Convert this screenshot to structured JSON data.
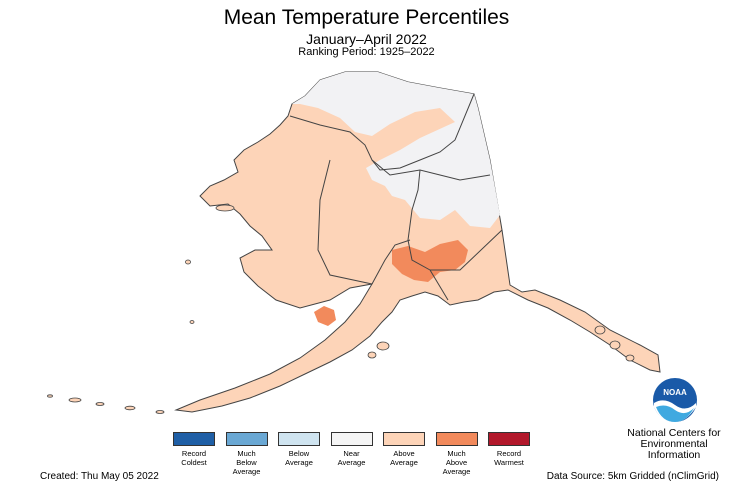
{
  "title": "Mean Temperature Percentiles",
  "subtitle": "January–April 2022",
  "period": "Ranking Period: 1925–2022",
  "legend": [
    {
      "label": "Record\nColdest",
      "color": "#1f5fa6"
    },
    {
      "label": "Much\nBelow\nAverage",
      "color": "#6aa8d4"
    },
    {
      "label": "Below\nAverage",
      "color": "#cfe4f0"
    },
    {
      "label": "Near\nAverage",
      "color": "#f5f5f5"
    },
    {
      "label": "Above\nAverage",
      "color": "#fdd4b8"
    },
    {
      "label": "Much\nAbove\nAverage",
      "color": "#f28a5c"
    },
    {
      "label": "Record\nWarmest",
      "color": "#b2182b"
    }
  ],
  "created": "Created: Thu May 05 2022",
  "source": "Data Source: 5km Gridded (nClimGrid)",
  "agency": "National Centers for\nEnvironmental\nInformation",
  "logo_text": "NOAA",
  "colors": {
    "near": "#f2f2f4",
    "above": "#fdd4b8",
    "much_above": "#f28a5c",
    "border": "#444444"
  }
}
